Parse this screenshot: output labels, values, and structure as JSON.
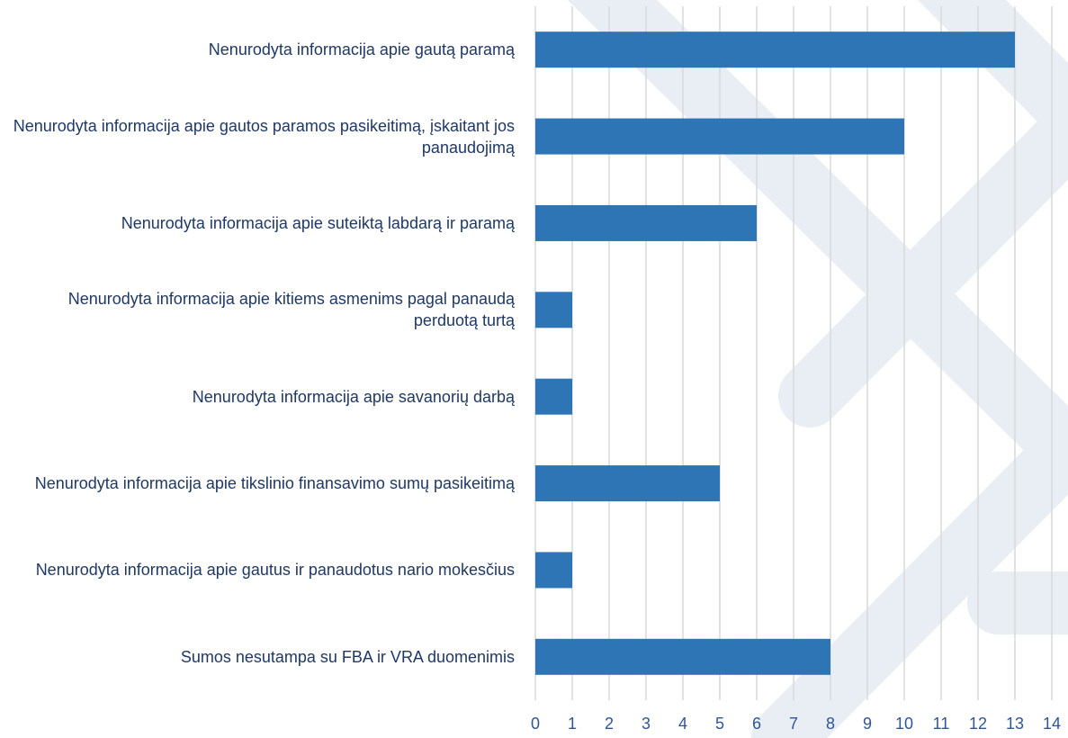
{
  "chart_data": {
    "type": "bar",
    "orientation": "horizontal",
    "categories": [
      "Nenurodyta informacija apie gautą paramą",
      "Nenurodyta informacija apie gautos paramos pasikeitimą, įskaitant jos panaudojimą",
      "Nenurodyta informacija apie suteiktą labdarą ir paramą",
      "Nenurodyta informacija apie kitiems asmenims pagal panaudą perduotą turtą",
      "Nenurodyta informacija apie savanorių darbą",
      "Nenurodyta informacija apie tikslinio finansavimo sumų pasikeitimą",
      "Nenurodyta informacija apie gautus ir panaudotus nario mokesčius",
      "Sumos nesutampa su FBA ir VRA duomenimis"
    ],
    "values": [
      13,
      10,
      6,
      1,
      1,
      5,
      1,
      8
    ],
    "color": "#2e75b6",
    "xlim": [
      0,
      14
    ],
    "xticks": [
      0,
      1,
      2,
      3,
      4,
      5,
      6,
      7,
      8,
      9,
      10,
      11,
      12,
      13,
      14
    ],
    "grid": true
  }
}
